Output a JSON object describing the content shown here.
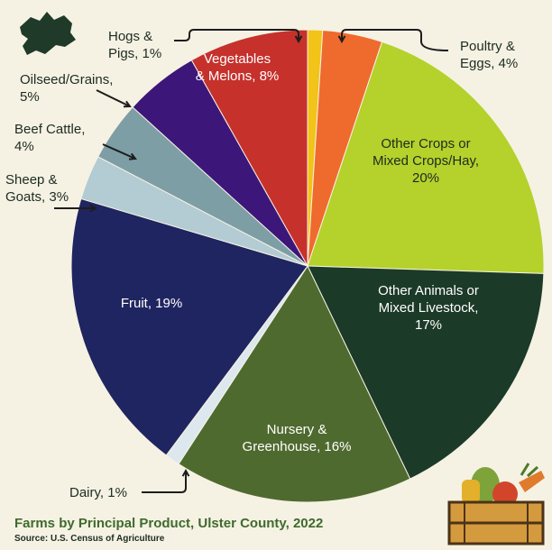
{
  "chart_data": {
    "type": "pie",
    "title": "Farms by Principal Product, Ulster County, 2022",
    "source": "Source: U.S. Census of Agriculture",
    "unit": "%",
    "slices": [
      {
        "label_lines": [
          "Hogs &",
          "Pigs, 1%"
        ],
        "category": "Hogs & Pigs",
        "value": 1,
        "color": "#f2c318"
      },
      {
        "label_lines": [
          "Poultry &",
          "Eggs, 4%"
        ],
        "category": "Poultry & Eggs",
        "value": 4,
        "color": "#ef6a2d"
      },
      {
        "label_lines": [
          "Other Crops or",
          "Mixed Crops/Hay,",
          "20%"
        ],
        "category": "Other Crops or Mixed Crops/Hay",
        "value": 20,
        "color": "#b5d12b"
      },
      {
        "label_lines": [
          "Other Animals or",
          "Mixed Livestock,",
          "17%"
        ],
        "category": "Other Animals or Mixed Livestock",
        "value": 17,
        "color": "#1c3a28"
      },
      {
        "label_lines": [
          "Nursery &",
          "Greenhouse, 16%"
        ],
        "category": "Nursery & Greenhouse",
        "value": 16,
        "color": "#4f6a2f"
      },
      {
        "label_lines": [
          "Dairy, 1%"
        ],
        "category": "Dairy",
        "value": 1,
        "color": "#dde8ee"
      },
      {
        "label_lines": [
          "Fruit, 19%"
        ],
        "category": "Fruit",
        "value": 19,
        "color": "#1f2560"
      },
      {
        "label_lines": [
          "Sheep &",
          "Goats, 3%"
        ],
        "category": "Sheep & Goats",
        "value": 3,
        "color": "#b3cbd3"
      },
      {
        "label_lines": [
          "Beef Cattle,",
          "4%"
        ],
        "category": "Beef Cattle",
        "value": 4,
        "color": "#7e9ea6"
      },
      {
        "label_lines": [
          "Oilseed/Grains,",
          "5%"
        ],
        "category": "Oilseed/Grains",
        "value": 5,
        "color": "#3d1679"
      },
      {
        "label_lines": [
          "Vegetables",
          "& Melons, 8%"
        ],
        "category": "Vegetables & Melons",
        "value": 8,
        "color": "#c6312c"
      }
    ]
  },
  "icons": {
    "map": "county-map-icon",
    "crate": "vegetable-crate-icon"
  }
}
